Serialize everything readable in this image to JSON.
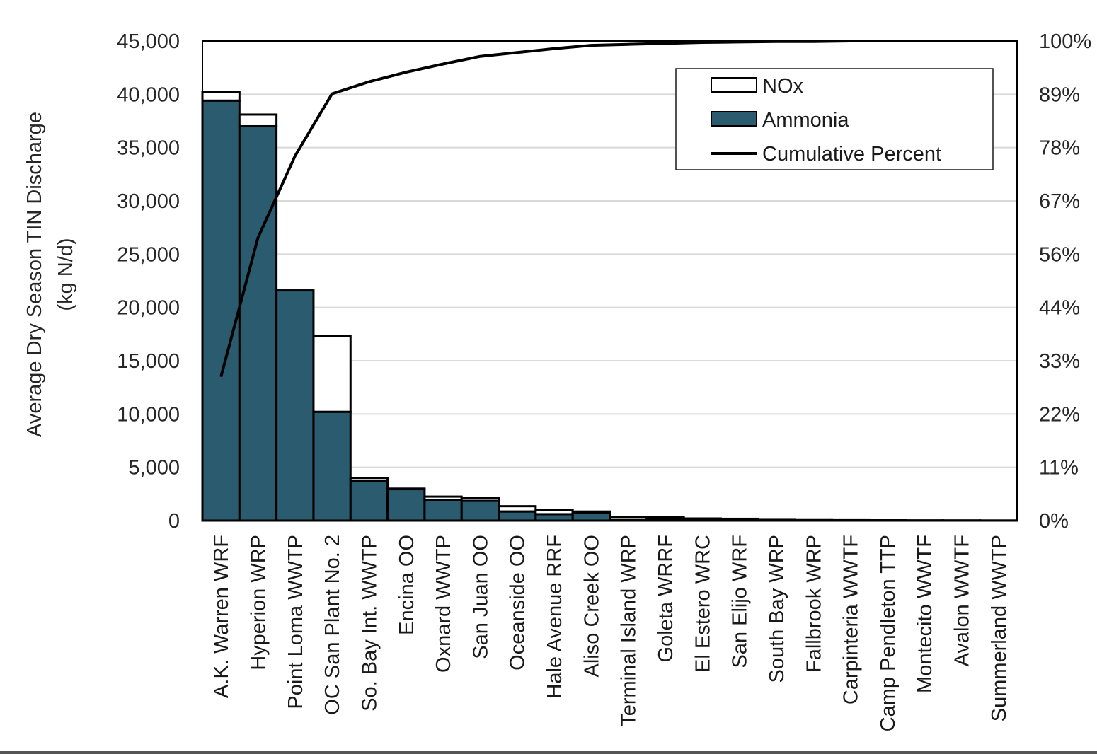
{
  "chart_data": {
    "type": "bar",
    "stacked": true,
    "categories": [
      "A.K. Warren WRF",
      "Hyperion WRP",
      "Point Loma WWTP",
      "OC San Plant No. 2",
      "So. Bay Int. WWTP",
      "Encina OO",
      "Oxnard WWTP",
      "San Juan OO",
      "Oceanside OO",
      "Hale Avenue RRF",
      "Aliso Creek OO",
      "Terminal Island WRP",
      "Goleta WRRF",
      "El Estero WRC",
      "San Elijo WRF",
      "South Bay WRP",
      "Fallbrook WRP",
      "Carpinteria WWTF",
      "Camp Pendleton TTP",
      "Montecito WWTF",
      "Avalon WWTF",
      "Summerland WWTP"
    ],
    "series": [
      {
        "name": "Ammonia",
        "color": "#2a5b6e",
        "values": [
          39400,
          37000,
          21600,
          10200,
          3700,
          2950,
          1950,
          1850,
          850,
          600,
          750,
          50,
          150,
          100,
          80,
          30,
          20,
          20,
          20,
          10,
          10,
          5
        ]
      },
      {
        "name": "NOx",
        "color": "#ffffff",
        "values": [
          800,
          1100,
          0,
          7100,
          300,
          50,
          300,
          300,
          500,
          400,
          100,
          300,
          150,
          100,
          90,
          40,
          30,
          20,
          10,
          10,
          5,
          5
        ]
      }
    ],
    "line": {
      "name": "Cumulative Percent",
      "axis": "right",
      "values": [
        30,
        59,
        76,
        89,
        91.5,
        93.5,
        95.2,
        96.8,
        97.6,
        98.4,
        99.1,
        99.3,
        99.5,
        99.7,
        99.8,
        99.9,
        99.9,
        100,
        100,
        100,
        100,
        100
      ]
    },
    "ylabel": "Average Dry Season TIN Discharge",
    "ylabel_units": "(kg N/d)",
    "xlabel": "",
    "ylim": [
      0,
      45000
    ],
    "y_ticks": [
      "0",
      "5,000",
      "10,000",
      "15,000",
      "20,000",
      "25,000",
      "30,000",
      "35,000",
      "40,000",
      "45,000"
    ],
    "y2lim": [
      0,
      100
    ],
    "y2_ticks": [
      "0%",
      "11%",
      "22%",
      "33%",
      "44%",
      "56%",
      "67%",
      "78%",
      "89%",
      "100%"
    ],
    "grid": true,
    "legend_position": "top-right",
    "legend": [
      "NOx",
      "Ammonia",
      "Cumulative Percent"
    ]
  }
}
